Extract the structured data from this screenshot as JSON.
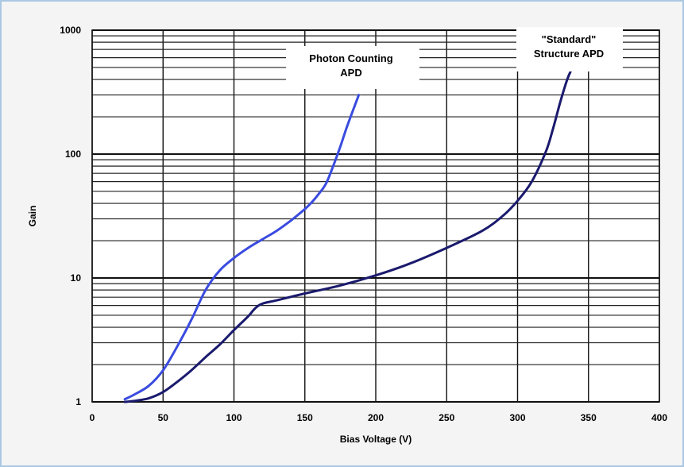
{
  "chart_data": {
    "type": "line",
    "title": "",
    "xlabel": "Bias Voltage (V)",
    "ylabel": "Gain",
    "xlim": [
      0,
      400
    ],
    "ylim": [
      1,
      1000
    ],
    "yscale": "log",
    "grid": true,
    "x_ticks": [
      "0",
      "50",
      "100",
      "150",
      "200",
      "250",
      "300",
      "350",
      "400"
    ],
    "y_ticks": [
      "1",
      "10",
      "100",
      "1000"
    ],
    "series": [
      {
        "color": "#3a4bdf",
        "x": [
          23,
          30,
          40,
          50,
          60,
          70,
          80,
          90,
          100,
          110,
          120,
          130,
          140,
          150,
          155,
          160,
          165,
          170,
          175,
          180,
          188
        ],
        "y": [
          1.05,
          1.15,
          1.35,
          1.8,
          2.8,
          4.6,
          8.0,
          11.5,
          14.5,
          17.5,
          20.5,
          24,
          29,
          36,
          41,
          48,
          58,
          80,
          115,
          170,
          300
        ]
      },
      {
        "color": "#1a1a6e",
        "x": [
          23,
          30,
          40,
          50,
          60,
          70,
          80,
          90,
          100,
          110,
          115,
          120,
          130,
          150,
          175,
          200,
          225,
          250,
          275,
          290,
          300,
          310,
          320,
          325,
          330,
          335,
          338
        ],
        "y": [
          1.0,
          1.02,
          1.07,
          1.2,
          1.45,
          1.8,
          2.3,
          2.9,
          3.8,
          4.9,
          5.7,
          6.2,
          6.6,
          7.5,
          8.7,
          10.5,
          13.2,
          17.5,
          24,
          32,
          42,
          60,
          105,
          160,
          260,
          400,
          480
        ]
      }
    ],
    "annotations": [
      {
        "lines": [
          "Photon Counting",
          "APD"
        ]
      },
      {
        "lines": [
          "\"Standard\"",
          "Structure APD"
        ]
      }
    ]
  }
}
